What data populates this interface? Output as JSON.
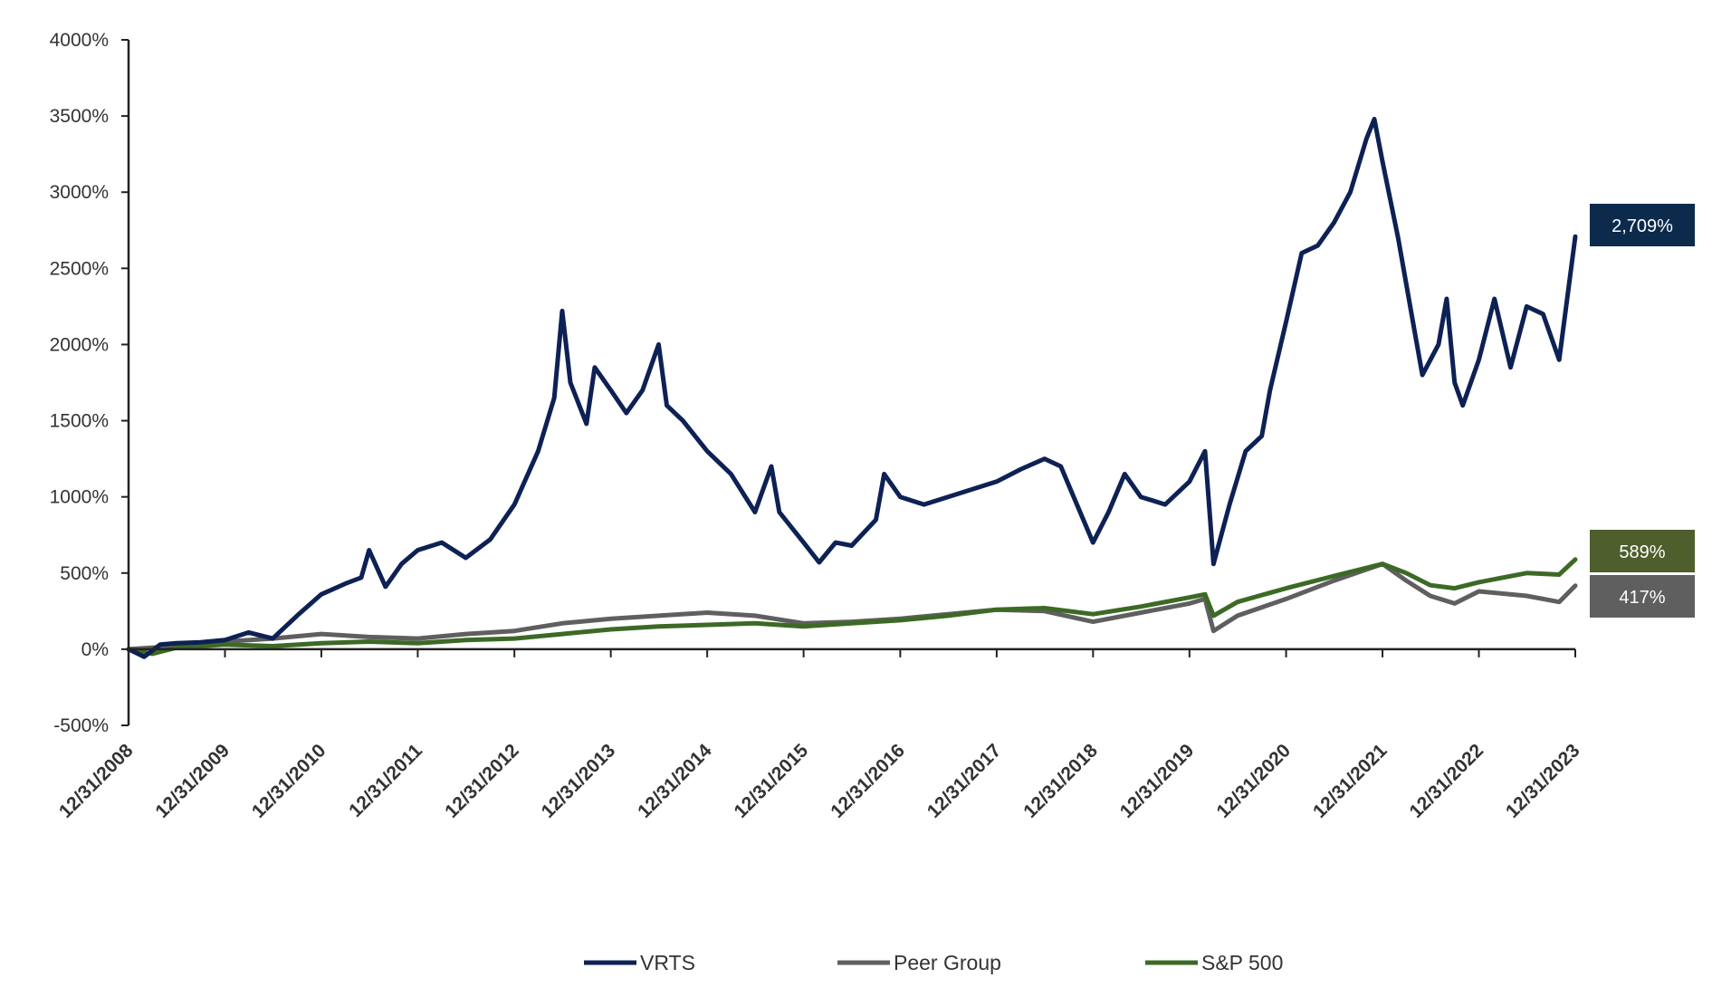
{
  "chart_data": {
    "type": "line",
    "title": "",
    "xlabel": "",
    "ylabel": "",
    "ylim": [
      -500,
      4000
    ],
    "yticks": [
      -500,
      0,
      500,
      1000,
      1500,
      2000,
      2500,
      3000,
      3500,
      4000
    ],
    "ytick_labels": [
      "-500%",
      "0%",
      "500%",
      "1000%",
      "1500%",
      "2000%",
      "2500%",
      "3000%",
      "3500%",
      "4000%"
    ],
    "xlim": [
      "12/31/2008",
      "12/31/2023"
    ],
    "xtick_labels": [
      "12/31/2008",
      "12/31/2009",
      "12/31/2010",
      "12/31/2011",
      "12/31/2012",
      "12/31/2013",
      "12/31/2014",
      "12/31/2015",
      "12/31/2016",
      "12/31/2017",
      "12/31/2018",
      "12/31/2019",
      "12/31/2020",
      "12/31/2021",
      "12/31/2022",
      "12/31/2023"
    ],
    "grid": false,
    "legend_position": "bottom",
    "series": [
      {
        "name": "VRTS",
        "color": "#0d2154",
        "end_label": "2,709%",
        "end_label_color": "#0b2a4c",
        "points": [
          [
            "12/31/2008",
            0
          ],
          [
            "02/28/2009",
            -50
          ],
          [
            "04/30/2009",
            30
          ],
          [
            "06/30/2009",
            40
          ],
          [
            "09/30/2009",
            45
          ],
          [
            "12/31/2009",
            60
          ],
          [
            "03/31/2010",
            110
          ],
          [
            "06/30/2010",
            70
          ],
          [
            "09/30/2010",
            220
          ],
          [
            "12/31/2010",
            360
          ],
          [
            "03/31/2011",
            430
          ],
          [
            "05/31/2011",
            470
          ],
          [
            "06/30/2011",
            650
          ],
          [
            "08/31/2011",
            410
          ],
          [
            "10/31/2011",
            560
          ],
          [
            "12/31/2011",
            650
          ],
          [
            "03/31/2012",
            700
          ],
          [
            "06/30/2012",
            600
          ],
          [
            "09/30/2012",
            720
          ],
          [
            "12/31/2012",
            950
          ],
          [
            "03/31/2013",
            1300
          ],
          [
            "05/31/2013",
            1650
          ],
          [
            "06/30/2013",
            2220
          ],
          [
            "07/31/2013",
            1750
          ],
          [
            "09/30/2013",
            1480
          ],
          [
            "10/31/2013",
            1850
          ],
          [
            "12/31/2013",
            1700
          ],
          [
            "02/28/2014",
            1550
          ],
          [
            "04/30/2014",
            1700
          ],
          [
            "06/30/2014",
            2000
          ],
          [
            "07/31/2014",
            1600
          ],
          [
            "09/30/2014",
            1500
          ],
          [
            "12/31/2014",
            1300
          ],
          [
            "03/31/2015",
            1150
          ],
          [
            "06/30/2015",
            900
          ],
          [
            "08/31/2015",
            1200
          ],
          [
            "09/30/2015",
            900
          ],
          [
            "12/31/2015",
            700
          ],
          [
            "02/28/2016",
            570
          ],
          [
            "04/30/2016",
            700
          ],
          [
            "06/30/2016",
            680
          ],
          [
            "09/30/2016",
            850
          ],
          [
            "10/31/2016",
            1150
          ],
          [
            "12/31/2016",
            1000
          ],
          [
            "03/31/2017",
            950
          ],
          [
            "06/30/2017",
            1000
          ],
          [
            "09/30/2017",
            1050
          ],
          [
            "12/31/2017",
            1100
          ],
          [
            "03/31/2018",
            1180
          ],
          [
            "06/30/2018",
            1250
          ],
          [
            "08/31/2018",
            1200
          ],
          [
            "10/31/2018",
            950
          ],
          [
            "12/31/2018",
            700
          ],
          [
            "02/28/2019",
            900
          ],
          [
            "04/30/2019",
            1150
          ],
          [
            "06/30/2019",
            1000
          ],
          [
            "09/30/2019",
            950
          ],
          [
            "12/31/2019",
            1100
          ],
          [
            "02/28/2020",
            1300
          ],
          [
            "03/31/2020",
            560
          ],
          [
            "05/31/2020",
            950
          ],
          [
            "07/31/2020",
            1300
          ],
          [
            "09/30/2020",
            1400
          ],
          [
            "10/31/2020",
            1700
          ],
          [
            "12/31/2020",
            2150
          ],
          [
            "02/28/2021",
            2600
          ],
          [
            "04/30/2021",
            2650
          ],
          [
            "06/30/2021",
            2800
          ],
          [
            "08/31/2021",
            3000
          ],
          [
            "10/31/2021",
            3350
          ],
          [
            "11/30/2021",
            3480
          ],
          [
            "12/31/2021",
            3200
          ],
          [
            "02/28/2022",
            2700
          ],
          [
            "04/30/2022",
            2100
          ],
          [
            "05/31/2022",
            1800
          ],
          [
            "07/31/2022",
            2000
          ],
          [
            "08/31/2022",
            2300
          ],
          [
            "09/30/2022",
            1750
          ],
          [
            "10/31/2022",
            1600
          ],
          [
            "12/31/2022",
            1900
          ],
          [
            "02/28/2023",
            2300
          ],
          [
            "04/30/2023",
            1850
          ],
          [
            "06/30/2023",
            2250
          ],
          [
            "08/31/2023",
            2200
          ],
          [
            "10/31/2023",
            1900
          ],
          [
            "11/30/2023",
            2300
          ],
          [
            "12/31/2023",
            2709
          ]
        ]
      },
      {
        "name": "Peer Group",
        "color": "#5f5f5f",
        "end_label": "417%",
        "end_label_color": "#5f5f5f",
        "points": [
          [
            "12/31/2008",
            0
          ],
          [
            "06/30/2009",
            20
          ],
          [
            "12/31/2009",
            50
          ],
          [
            "06/30/2010",
            70
          ],
          [
            "12/31/2010",
            100
          ],
          [
            "06/30/2011",
            80
          ],
          [
            "12/31/2011",
            70
          ],
          [
            "06/30/2012",
            100
          ],
          [
            "12/31/2012",
            120
          ],
          [
            "06/30/2013",
            170
          ],
          [
            "12/31/2013",
            200
          ],
          [
            "06/30/2014",
            220
          ],
          [
            "12/31/2014",
            240
          ],
          [
            "06/30/2015",
            220
          ],
          [
            "12/31/2015",
            170
          ],
          [
            "06/30/2016",
            180
          ],
          [
            "12/31/2016",
            200
          ],
          [
            "06/30/2017",
            230
          ],
          [
            "12/31/2017",
            260
          ],
          [
            "06/30/2018",
            250
          ],
          [
            "12/31/2018",
            180
          ],
          [
            "06/30/2019",
            240
          ],
          [
            "12/31/2019",
            300
          ],
          [
            "02/28/2020",
            330
          ],
          [
            "03/31/2020",
            120
          ],
          [
            "06/30/2020",
            220
          ],
          [
            "12/31/2020",
            330
          ],
          [
            "06/30/2021",
            450
          ],
          [
            "12/31/2021",
            560
          ],
          [
            "03/31/2022",
            450
          ],
          [
            "06/30/2022",
            350
          ],
          [
            "09/30/2022",
            300
          ],
          [
            "12/31/2022",
            380
          ],
          [
            "06/30/2023",
            350
          ],
          [
            "10/31/2023",
            310
          ],
          [
            "12/31/2023",
            417
          ]
        ]
      },
      {
        "name": "S&P 500",
        "color": "#3c6a25",
        "end_label": "589%",
        "end_label_color": "#4e5e2c",
        "points": [
          [
            "12/31/2008",
            0
          ],
          [
            "03/31/2009",
            -30
          ],
          [
            "06/30/2009",
            10
          ],
          [
            "12/31/2009",
            30
          ],
          [
            "06/30/2010",
            20
          ],
          [
            "12/31/2010",
            40
          ],
          [
            "06/30/2011",
            50
          ],
          [
            "12/31/2011",
            40
          ],
          [
            "06/30/2012",
            60
          ],
          [
            "12/31/2012",
            70
          ],
          [
            "06/30/2013",
            100
          ],
          [
            "12/31/2013",
            130
          ],
          [
            "06/30/2014",
            150
          ],
          [
            "12/31/2014",
            160
          ],
          [
            "06/30/2015",
            170
          ],
          [
            "12/31/2015",
            150
          ],
          [
            "06/30/2016",
            170
          ],
          [
            "12/31/2016",
            190
          ],
          [
            "06/30/2017",
            220
          ],
          [
            "12/31/2017",
            260
          ],
          [
            "06/30/2018",
            270
          ],
          [
            "12/31/2018",
            230
          ],
          [
            "06/30/2019",
            280
          ],
          [
            "12/31/2019",
            340
          ],
          [
            "02/28/2020",
            360
          ],
          [
            "03/31/2020",
            220
          ],
          [
            "06/30/2020",
            310
          ],
          [
            "12/31/2020",
            400
          ],
          [
            "06/30/2021",
            480
          ],
          [
            "12/31/2021",
            560
          ],
          [
            "03/31/2022",
            500
          ],
          [
            "06/30/2022",
            420
          ],
          [
            "09/30/2022",
            400
          ],
          [
            "12/31/2022",
            440
          ],
          [
            "06/30/2023",
            500
          ],
          [
            "10/31/2023",
            490
          ],
          [
            "12/31/2023",
            589
          ]
        ]
      }
    ]
  }
}
